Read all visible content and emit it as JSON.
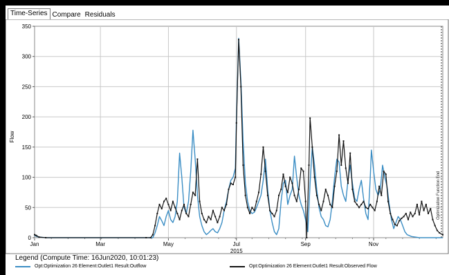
{
  "tabs": [
    {
      "label": "Time-Series",
      "active": true
    },
    {
      "label": "Compare",
      "active": false
    },
    {
      "label": "Residuals",
      "active": false
    }
  ],
  "legend": {
    "title": "Legend (Compute Time: 16Jun2020, 10:01:23)",
    "items": [
      {
        "label": "Opt:Optimization 26 Element:Outlet1 Result:Outflow",
        "color": "#3a8dc4"
      },
      {
        "label": "Opt:Optimization 26 Element:Outlet1 Result:Observed Flow",
        "color": "#111111"
      }
    ]
  },
  "chart_data": {
    "type": "line",
    "ylabel": "Flow",
    "year_label": "2015",
    "ylim": [
      0,
      350
    ],
    "yticks": [
      0,
      50,
      100,
      150,
      200,
      250,
      300,
      350
    ],
    "x_ticks": [
      "Jan",
      "Mar",
      "May",
      "Jul",
      "Sep",
      "Nov"
    ],
    "x_tick_days": [
      0,
      59,
      120,
      181,
      243,
      304
    ],
    "x_range_days": [
      0,
      366
    ],
    "annotation": "Optimization Function End",
    "series": [
      {
        "name": "Opt:Optimization 26 Element:Outlet1 Result:Outflow",
        "color": "#3a8dc4",
        "points": [
          [
            0,
            3
          ],
          [
            1,
            3
          ],
          [
            2,
            2
          ],
          [
            4,
            1
          ],
          [
            10,
            0
          ],
          [
            100,
            0
          ],
          [
            106,
            0
          ],
          [
            108,
            8
          ],
          [
            110,
            20
          ],
          [
            112,
            35
          ],
          [
            114,
            28
          ],
          [
            116,
            20
          ],
          [
            118,
            35
          ],
          [
            120,
            45
          ],
          [
            122,
            30
          ],
          [
            124,
            25
          ],
          [
            126,
            35
          ],
          [
            128,
            60
          ],
          [
            130,
            140
          ],
          [
            132,
            100
          ],
          [
            134,
            50
          ],
          [
            136,
            40
          ],
          [
            138,
            60
          ],
          [
            140,
            110
          ],
          [
            142,
            178
          ],
          [
            144,
            130
          ],
          [
            146,
            70
          ],
          [
            148,
            35
          ],
          [
            150,
            20
          ],
          [
            152,
            10
          ],
          [
            154,
            5
          ],
          [
            156,
            8
          ],
          [
            158,
            12
          ],
          [
            160,
            15
          ],
          [
            162,
            10
          ],
          [
            164,
            8
          ],
          [
            166,
            15
          ],
          [
            168,
            25
          ],
          [
            170,
            45
          ],
          [
            172,
            60
          ],
          [
            174,
            80
          ],
          [
            176,
            95
          ],
          [
            178,
            100
          ],
          [
            180,
            115
          ],
          [
            181,
            200
          ],
          [
            183,
            330
          ],
          [
            185,
            260
          ],
          [
            187,
            160
          ],
          [
            189,
            90
          ],
          [
            191,
            60
          ],
          [
            193,
            45
          ],
          [
            195,
            40
          ],
          [
            197,
            42
          ],
          [
            199,
            50
          ],
          [
            201,
            60
          ],
          [
            203,
            70
          ],
          [
            205,
            95
          ],
          [
            207,
            130
          ],
          [
            209,
            80
          ],
          [
            211,
            45
          ],
          [
            213,
            25
          ],
          [
            215,
            10
          ],
          [
            217,
            5
          ],
          [
            219,
            15
          ],
          [
            221,
            60
          ],
          [
            223,
            90
          ],
          [
            225,
            95
          ],
          [
            227,
            55
          ],
          [
            229,
            70
          ],
          [
            231,
            80
          ],
          [
            233,
            135
          ],
          [
            235,
            100
          ],
          [
            237,
            70
          ],
          [
            239,
            55
          ],
          [
            241,
            45
          ],
          [
            243,
            30
          ],
          [
            245,
            10
          ],
          [
            247,
            90
          ],
          [
            249,
            150
          ],
          [
            251,
            120
          ],
          [
            253,
            80
          ],
          [
            255,
            50
          ],
          [
            257,
            35
          ],
          [
            259,
            30
          ],
          [
            261,
            20
          ],
          [
            263,
            18
          ],
          [
            265,
            30
          ],
          [
            267,
            60
          ],
          [
            269,
            100
          ],
          [
            271,
            130
          ],
          [
            273,
            125
          ],
          [
            275,
            85
          ],
          [
            277,
            70
          ],
          [
            279,
            60
          ],
          [
            281,
            95
          ],
          [
            283,
            120
          ],
          [
            285,
            90
          ],
          [
            287,
            65
          ],
          [
            289,
            60
          ],
          [
            291,
            80
          ],
          [
            293,
            95
          ],
          [
            295,
            65
          ],
          [
            297,
            40
          ],
          [
            299,
            30
          ],
          [
            301,
            100
          ],
          [
            302,
            145
          ],
          [
            304,
            110
          ],
          [
            306,
            80
          ],
          [
            308,
            70
          ],
          [
            310,
            80
          ],
          [
            312,
            120
          ],
          [
            314,
            100
          ],
          [
            316,
            85
          ],
          [
            318,
            55
          ],
          [
            320,
            30
          ],
          [
            322,
            15
          ],
          [
            324,
            25
          ],
          [
            326,
            35
          ],
          [
            328,
            30
          ],
          [
            330,
            20
          ],
          [
            332,
            10
          ],
          [
            334,
            5
          ],
          [
            338,
            2
          ],
          [
            345,
            0
          ],
          [
            366,
            0
          ]
        ]
      },
      {
        "name": "Opt:Optimization 26 Element:Outlet1 Result:Observed Flow",
        "color": "#111111",
        "points": [
          [
            0,
            5
          ],
          [
            1,
            4
          ],
          [
            2,
            3
          ],
          [
            4,
            1
          ],
          [
            10,
            0
          ],
          [
            100,
            0
          ],
          [
            104,
            0
          ],
          [
            106,
            5
          ],
          [
            108,
            20
          ],
          [
            110,
            40
          ],
          [
            112,
            55
          ],
          [
            114,
            48
          ],
          [
            116,
            60
          ],
          [
            118,
            65
          ],
          [
            120,
            55
          ],
          [
            122,
            45
          ],
          [
            124,
            60
          ],
          [
            126,
            50
          ],
          [
            128,
            40
          ],
          [
            130,
            30
          ],
          [
            132,
            45
          ],
          [
            134,
            55
          ],
          [
            136,
            40
          ],
          [
            138,
            35
          ],
          [
            140,
            55
          ],
          [
            142,
            75
          ],
          [
            144,
            70
          ],
          [
            146,
            130
          ],
          [
            148,
            60
          ],
          [
            150,
            40
          ],
          [
            152,
            30
          ],
          [
            154,
            25
          ],
          [
            156,
            35
          ],
          [
            158,
            30
          ],
          [
            160,
            45
          ],
          [
            162,
            35
          ],
          [
            164,
            25
          ],
          [
            166,
            35
          ],
          [
            168,
            50
          ],
          [
            170,
            45
          ],
          [
            172,
            55
          ],
          [
            174,
            80
          ],
          [
            176,
            90
          ],
          [
            178,
            88
          ],
          [
            180,
            100
          ],
          [
            181,
            190
          ],
          [
            183,
            328
          ],
          [
            185,
            250
          ],
          [
            187,
            120
          ],
          [
            189,
            70
          ],
          [
            191,
            50
          ],
          [
            193,
            40
          ],
          [
            195,
            50
          ],
          [
            197,
            45
          ],
          [
            199,
            60
          ],
          [
            201,
            75
          ],
          [
            203,
            105
          ],
          [
            205,
            150
          ],
          [
            207,
            110
          ],
          [
            209,
            70
          ],
          [
            211,
            45
          ],
          [
            213,
            40
          ],
          [
            215,
            35
          ],
          [
            217,
            45
          ],
          [
            219,
            70
          ],
          [
            221,
            80
          ],
          [
            223,
            105
          ],
          [
            225,
            85
          ],
          [
            227,
            75
          ],
          [
            229,
            100
          ],
          [
            231,
            90
          ],
          [
            233,
            70
          ],
          [
            235,
            60
          ],
          [
            237,
            80
          ],
          [
            239,
            115
          ],
          [
            241,
            110
          ],
          [
            243,
            60
          ],
          [
            244,
            0
          ],
          [
            246,
            120
          ],
          [
            247,
            198
          ],
          [
            249,
            150
          ],
          [
            251,
            100
          ],
          [
            253,
            70
          ],
          [
            255,
            55
          ],
          [
            257,
            45
          ],
          [
            259,
            60
          ],
          [
            261,
            80
          ],
          [
            263,
            70
          ],
          [
            265,
            55
          ],
          [
            267,
            50
          ],
          [
            269,
            85
          ],
          [
            271,
            110
          ],
          [
            273,
            170
          ],
          [
            275,
            120
          ],
          [
            277,
            160
          ],
          [
            279,
            115
          ],
          [
            281,
            90
          ],
          [
            283,
            140
          ],
          [
            285,
            80
          ],
          [
            287,
            60
          ],
          [
            289,
            55
          ],
          [
            291,
            50
          ],
          [
            293,
            55
          ],
          [
            295,
            60
          ],
          [
            297,
            50
          ],
          [
            299,
            48
          ],
          [
            301,
            55
          ],
          [
            303,
            50
          ],
          [
            305,
            45
          ],
          [
            307,
            60
          ],
          [
            309,
            85
          ],
          [
            311,
            70
          ],
          [
            313,
            110
          ],
          [
            315,
            105
          ],
          [
            317,
            60
          ],
          [
            319,
            40
          ],
          [
            321,
            30
          ],
          [
            323,
            22
          ],
          [
            325,
            20
          ],
          [
            327,
            28
          ],
          [
            329,
            32
          ],
          [
            331,
            35
          ],
          [
            333,
            40
          ],
          [
            335,
            30
          ],
          [
            337,
            42
          ],
          [
            339,
            35
          ],
          [
            341,
            40
          ],
          [
            343,
            55
          ],
          [
            345,
            38
          ],
          [
            347,
            60
          ],
          [
            349,
            45
          ],
          [
            351,
            55
          ],
          [
            353,
            40
          ],
          [
            355,
            48
          ],
          [
            357,
            30
          ],
          [
            359,
            20
          ],
          [
            361,
            12
          ],
          [
            363,
            8
          ],
          [
            366,
            5
          ]
        ]
      }
    ]
  }
}
